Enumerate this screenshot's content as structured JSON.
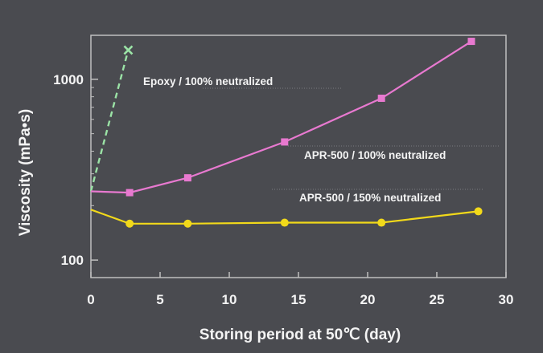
{
  "chart_data": {
    "type": "line",
    "xlabel": "Storing period at 50℃ (day)",
    "ylabel": "Viscosity (mPa•s)",
    "xlim": [
      0,
      30
    ],
    "ylim": [
      80,
      1750
    ],
    "yscale": "log",
    "xticks": [
      0,
      5,
      10,
      15,
      20,
      25,
      30
    ],
    "yticks": [
      100,
      1000
    ],
    "ytick_labels": [
      "100",
      "1000"
    ],
    "grid": false,
    "series": [
      {
        "name": "Epoxy / 100% neutralized",
        "color": "#9be3a6",
        "style": "dashed",
        "marker": "cross",
        "x": [
          0,
          2.7
        ],
        "y": [
          240,
          1450
        ],
        "marked": [
          false,
          true
        ]
      },
      {
        "name": "APR-500 / 100% neutralized",
        "color": "#e879d0",
        "style": "solid",
        "marker": "square",
        "x": [
          0,
          2.8,
          7,
          14,
          21,
          27.5
        ],
        "y": [
          240,
          236,
          285,
          450,
          785,
          1620
        ],
        "marked": [
          false,
          true,
          true,
          true,
          true,
          true
        ]
      },
      {
        "name": "APR-500 / 150% neutralized",
        "color": "#f2d91a",
        "style": "solid",
        "marker": "circle",
        "x": [
          0,
          2.8,
          7,
          14,
          21,
          28
        ],
        "y": [
          190,
          159,
          159,
          161,
          161,
          186
        ],
        "marked": [
          false,
          true,
          true,
          true,
          true,
          true
        ]
      }
    ]
  }
}
